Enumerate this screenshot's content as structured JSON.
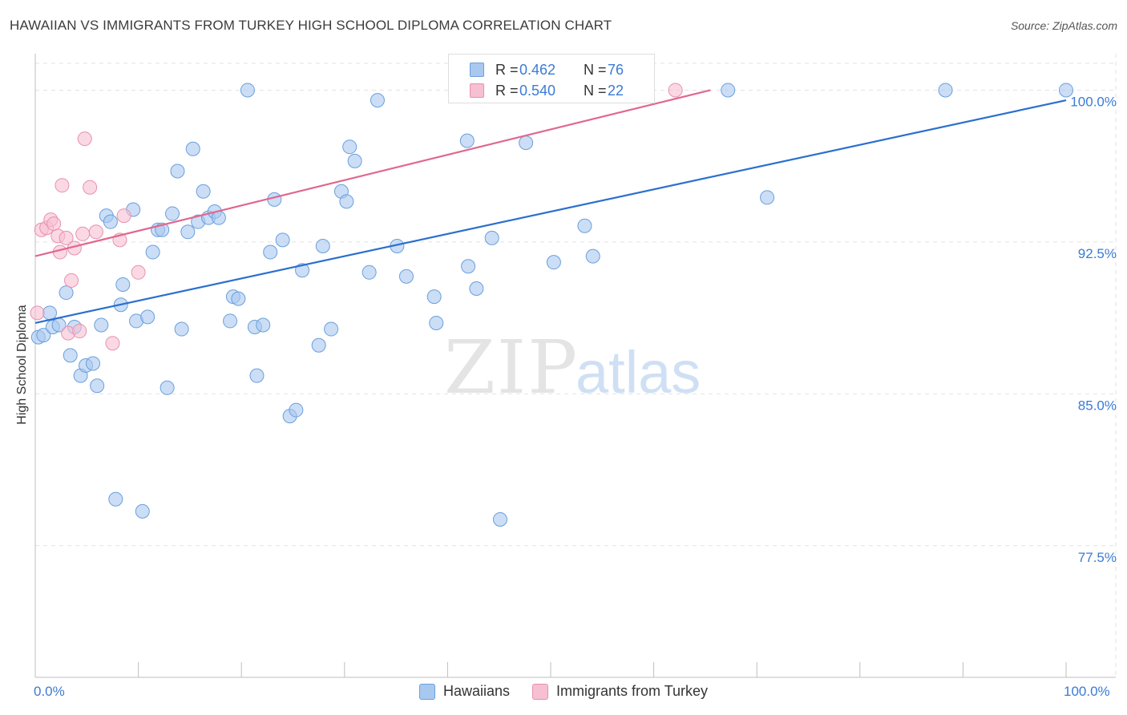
{
  "title": "HAWAIIAN VS IMMIGRANTS FROM TURKEY HIGH SCHOOL DIPLOMA CORRELATION CHART",
  "source": "Source: ZipAtlas.com",
  "watermark": {
    "zip": "ZIP",
    "atlas": "atlas"
  },
  "colors": {
    "blue_fill": "#a9c8f0",
    "blue_stroke": "#6a9fdc",
    "blue_line": "#2b6fce",
    "pink_fill": "#f6bfd2",
    "pink_stroke": "#e890ae",
    "pink_line": "#e0688f",
    "tick_text": "#3a7bd5",
    "grid": "#e2e2e2"
  },
  "legend": {
    "rows": [
      {
        "r_label": "R =",
        "r_value": "0.462",
        "n_label": "N =",
        "n_value": "76",
        "color": "#a9c8f0",
        "border": "#6a9fdc"
      },
      {
        "r_label": "R =",
        "r_value": "0.540",
        "n_label": "N =",
        "n_value": "22",
        "color": "#f6bfd2",
        "border": "#e890ae"
      }
    ]
  },
  "bottom_legend": [
    {
      "label": "Hawaiians",
      "color": "#a9c8f0",
      "border": "#6a9fdc"
    },
    {
      "label": "Immigrants from Turkey",
      "color": "#f6bfd2",
      "border": "#e890ae"
    }
  ],
  "chart_data": {
    "type": "scatter",
    "title": "HAWAIIAN VS IMMIGRANTS FROM TURKEY HIGH SCHOOL DIPLOMA CORRELATION CHART",
    "xlabel": "",
    "ylabel": "High School Diploma",
    "xlim": [
      0,
      100
    ],
    "ylim": [
      71.0,
      101.8
    ],
    "x_tick_labels": [
      "0.0%",
      "100.0%"
    ],
    "y_ticks": [
      77.5,
      85.0,
      92.5,
      100.0
    ],
    "y_tick_labels": [
      "77.5%",
      "85.0%",
      "92.5%",
      "100.0%"
    ],
    "grid": true,
    "legend_position": "top-center",
    "series": [
      {
        "name": "Hawaiians",
        "color": "#a9c8f0",
        "trend": {
          "x": [
            0,
            100
          ],
          "y": [
            88.5,
            99.5
          ]
        },
        "points": [
          [
            0.3,
            87.8
          ],
          [
            0.8,
            87.9
          ],
          [
            1.4,
            89.0
          ],
          [
            1.7,
            88.3
          ],
          [
            2.3,
            88.4
          ],
          [
            3.0,
            90.0
          ],
          [
            3.4,
            86.9
          ],
          [
            3.8,
            88.3
          ],
          [
            4.4,
            85.9
          ],
          [
            4.9,
            86.4
          ],
          [
            5.6,
            86.5
          ],
          [
            6.0,
            85.4
          ],
          [
            6.4,
            88.4
          ],
          [
            6.9,
            93.8
          ],
          [
            7.3,
            93.5
          ],
          [
            7.8,
            79.8
          ],
          [
            8.3,
            89.4
          ],
          [
            8.5,
            90.4
          ],
          [
            9.5,
            94.1
          ],
          [
            9.8,
            88.6
          ],
          [
            10.4,
            79.2
          ],
          [
            10.9,
            88.8
          ],
          [
            11.4,
            92.0
          ],
          [
            11.9,
            93.1
          ],
          [
            12.3,
            93.1
          ],
          [
            12.8,
            85.3
          ],
          [
            13.3,
            93.9
          ],
          [
            13.8,
            96.0
          ],
          [
            14.2,
            88.2
          ],
          [
            14.8,
            93.0
          ],
          [
            15.3,
            97.1
          ],
          [
            15.8,
            93.5
          ],
          [
            16.3,
            95.0
          ],
          [
            16.8,
            93.7
          ],
          [
            17.4,
            94.0
          ],
          [
            17.8,
            93.7
          ],
          [
            18.9,
            88.6
          ],
          [
            19.2,
            89.8
          ],
          [
            19.7,
            89.7
          ],
          [
            20.6,
            100.0
          ],
          [
            21.3,
            88.3
          ],
          [
            21.5,
            85.9
          ],
          [
            22.1,
            88.4
          ],
          [
            22.8,
            92.0
          ],
          [
            23.2,
            94.6
          ],
          [
            24.0,
            92.6
          ],
          [
            24.7,
            83.9
          ],
          [
            25.3,
            84.2
          ],
          [
            25.9,
            91.1
          ],
          [
            27.5,
            87.4
          ],
          [
            27.9,
            92.3
          ],
          [
            28.7,
            88.2
          ],
          [
            29.7,
            95.0
          ],
          [
            30.2,
            94.5
          ],
          [
            30.5,
            97.2
          ],
          [
            31.0,
            96.5
          ],
          [
            32.4,
            91.0
          ],
          [
            33.2,
            99.5
          ],
          [
            35.1,
            92.3
          ],
          [
            36.0,
            90.8
          ],
          [
            38.7,
            89.8
          ],
          [
            38.9,
            88.5
          ],
          [
            42.0,
            91.3
          ],
          [
            41.9,
            97.5
          ],
          [
            42.8,
            90.2
          ],
          [
            44.3,
            92.7
          ],
          [
            45.1,
            78.8
          ],
          [
            48.3,
            100.0
          ],
          [
            47.6,
            97.4
          ],
          [
            50.3,
            91.5
          ],
          [
            53.3,
            93.3
          ],
          [
            54.1,
            91.8
          ],
          [
            67.2,
            100.0
          ],
          [
            71.0,
            94.7
          ],
          [
            88.3,
            100.0
          ],
          [
            100.0,
            100.0
          ]
        ]
      },
      {
        "name": "Immigrants from Turkey",
        "color": "#f6bfd2",
        "trend": {
          "x": [
            0,
            65.5
          ],
          "y": [
            91.8,
            100.0
          ]
        },
        "points": [
          [
            0.2,
            89.0
          ],
          [
            0.6,
            93.1
          ],
          [
            1.1,
            93.2
          ],
          [
            1.5,
            93.6
          ],
          [
            1.8,
            93.4
          ],
          [
            2.2,
            92.8
          ],
          [
            2.4,
            92.0
          ],
          [
            2.6,
            95.3
          ],
          [
            3.0,
            92.7
          ],
          [
            3.2,
            88.0
          ],
          [
            3.5,
            90.6
          ],
          [
            3.8,
            92.2
          ],
          [
            4.3,
            88.1
          ],
          [
            4.6,
            92.9
          ],
          [
            4.8,
            97.6
          ],
          [
            5.3,
            95.2
          ],
          [
            5.9,
            93.0
          ],
          [
            7.5,
            87.5
          ],
          [
            8.2,
            92.6
          ],
          [
            8.6,
            93.8
          ],
          [
            10.0,
            91.0
          ],
          [
            62.1,
            100.0
          ]
        ]
      }
    ]
  }
}
